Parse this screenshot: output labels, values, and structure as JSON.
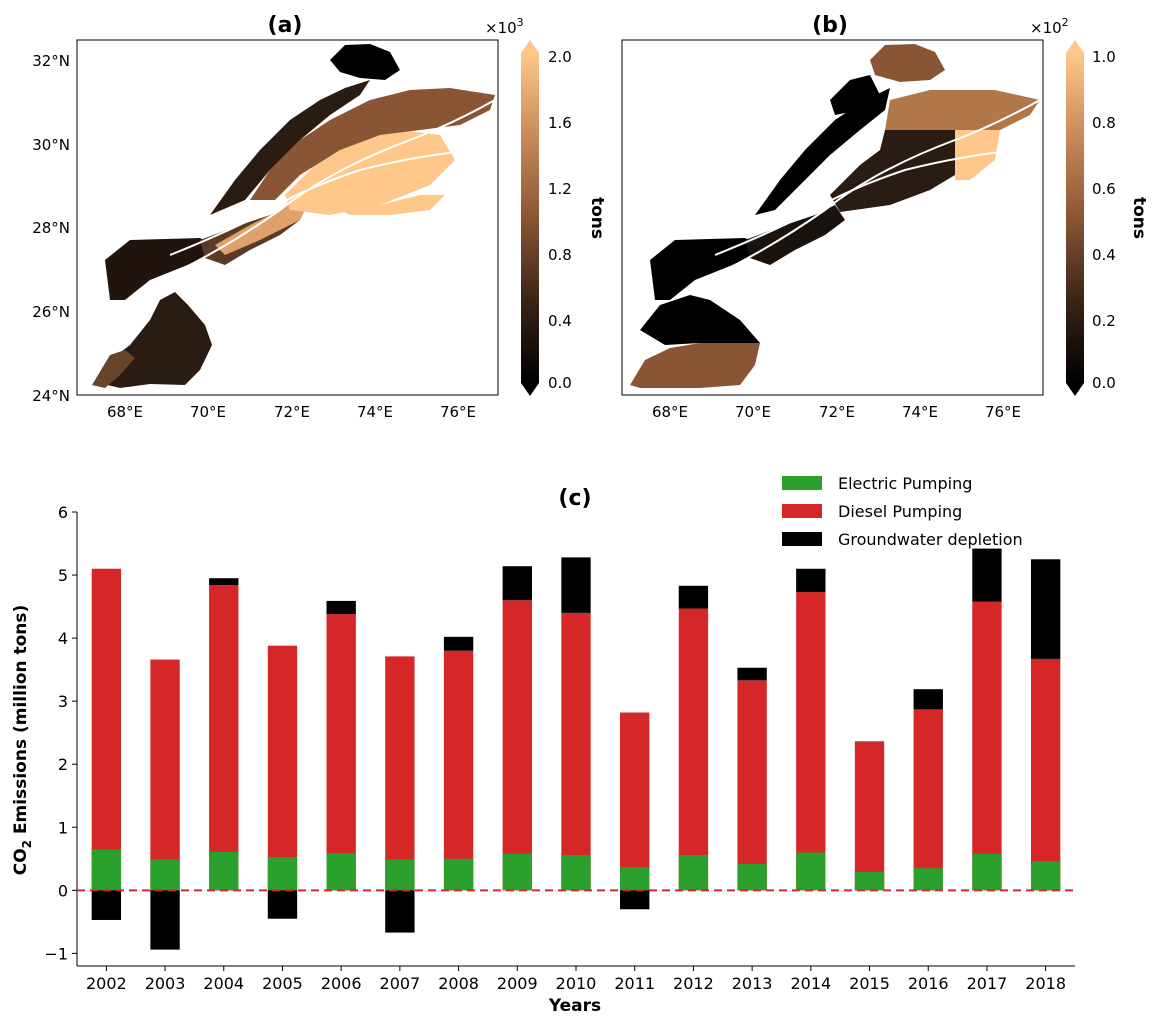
{
  "panels": {
    "a": {
      "title": "(a)",
      "colorbar": {
        "label": "tons",
        "scale_prefix": "×10",
        "scale_exp": "3",
        "ticks": [
          "2.0",
          "1.6",
          "1.2",
          "0.8",
          "0.4",
          "0.0"
        ]
      },
      "lat_ticks": [
        "32°N",
        "30°N",
        "28°N",
        "26°N",
        "24°N"
      ],
      "lon_ticks": [
        "68°E",
        "70°E",
        "72°E",
        "74°E",
        "76°E"
      ]
    },
    "b": {
      "title": "(b)",
      "colorbar": {
        "label": "tons",
        "scale_prefix": "×10",
        "scale_exp": "2",
        "ticks": [
          "1.0",
          "0.8",
          "0.6",
          "0.4",
          "0.2",
          "0.0"
        ]
      },
      "lat_ticks": [
        "32°N",
        "30°N",
        "28°N",
        "26°N",
        "24°N"
      ],
      "lon_ticks": [
        "68°E",
        "70°E",
        "72°E",
        "74°E",
        "76°E"
      ]
    }
  },
  "colors": {
    "electric": "#2ca02c",
    "diesel": "#d62728",
    "groundwater": "#000000",
    "zero_line": "#d62728",
    "cmap_low": "#000000",
    "cmap_mid": "#9a5f3c",
    "cmap_high": "#ffc88a"
  },
  "chart_data": {
    "type": "bar",
    "title": "(c)",
    "xlabel": "Years",
    "ylabel_main": "CO",
    "ylabel_sub": "2",
    "ylabel_rest": " Emissions (million tons)",
    "ylim": [
      -1.2,
      6
    ],
    "yticks": [
      "6",
      "5",
      "4",
      "3",
      "2",
      "1",
      "0",
      "−1"
    ],
    "ytick_values": [
      6,
      5,
      4,
      3,
      2,
      1,
      0,
      -1
    ],
    "categories": [
      "2002",
      "2003",
      "2004",
      "2005",
      "2006",
      "2007",
      "2008",
      "2009",
      "2010",
      "2011",
      "2012",
      "2013",
      "2014",
      "2015",
      "2016",
      "2017",
      "2018"
    ],
    "series": [
      {
        "name": "Electric Pumping",
        "values": [
          0.65,
          0.49,
          0.61,
          0.53,
          0.59,
          0.49,
          0.5,
          0.58,
          0.56,
          0.37,
          0.56,
          0.42,
          0.6,
          0.29,
          0.35,
          0.58,
          0.46
        ]
      },
      {
        "name": "Diesel Pumping",
        "values": [
          5.1,
          3.66,
          4.84,
          3.88,
          4.38,
          3.71,
          3.8,
          4.6,
          4.4,
          2.82,
          4.47,
          3.33,
          4.73,
          2.35,
          2.87,
          4.58,
          3.67
        ]
      },
      {
        "name": "Groundwater depletion",
        "values": [
          -0.47,
          -0.94,
          4.95,
          -0.45,
          4.59,
          -0.67,
          4.02,
          5.14,
          5.28,
          -0.3,
          4.83,
          3.53,
          5.1,
          2.36,
          3.19,
          5.42,
          5.25
        ]
      }
    ],
    "stacking_note": "Groundwater depletion drawn above diesel when positive (value is total top), below zero when negative",
    "legend": [
      "Electric Pumping",
      "Diesel Pumping",
      "Groundwater depletion"
    ],
    "legend_position": "top-right"
  }
}
